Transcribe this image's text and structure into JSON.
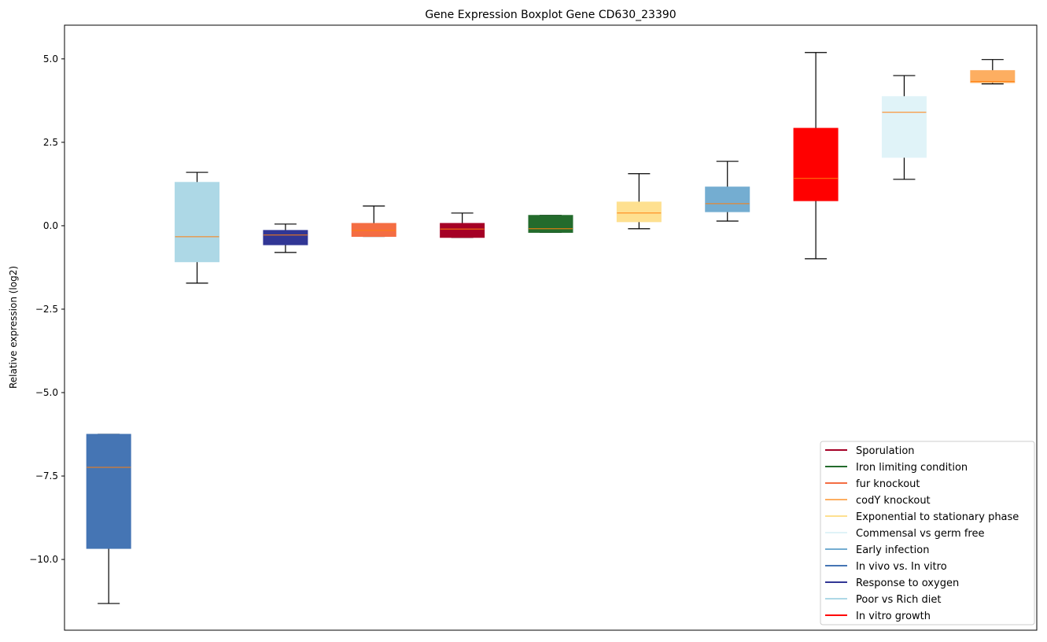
{
  "chart_data": {
    "type": "box",
    "title": "Gene Expression Boxplot Gene CD630_23390",
    "xlabel": "",
    "ylabel": "Relative expression (log2)",
    "ylim": [
      -12.12,
      6.01
    ],
    "yticks": [
      5.0,
      2.5,
      0.0,
      -2.5,
      -5.0,
      -7.5,
      -10.0
    ],
    "ytick_labels": [
      "5.0",
      "2.5",
      "0.0",
      "−2.5",
      "−5.0",
      "−7.5",
      "−10.0"
    ],
    "grid": false,
    "legend_placement": "lower-right",
    "median_color": "#ff7f0e",
    "boxes": [
      {
        "name": "In vivo vs. In vitro",
        "color": "#4575b4",
        "whislo": -11.32,
        "q1": -9.67,
        "med": -7.24,
        "q3": -6.25,
        "whishi": -6.25
      },
      {
        "name": "Poor vs Rich diet",
        "color": "#add8e6",
        "whislo": -1.72,
        "q1": -1.08,
        "med": -0.33,
        "q3": 1.3,
        "whishi": 1.6
      },
      {
        "name": "Response to oxygen",
        "color": "#313695",
        "whislo": -0.8,
        "q1": -0.57,
        "med": -0.28,
        "q3": -0.14,
        "whishi": 0.05
      },
      {
        "name": "fur knockout",
        "color": "#f46d43",
        "whislo": -0.32,
        "q1": -0.32,
        "med": -0.14,
        "q3": 0.07,
        "whishi": 0.59
      },
      {
        "name": "Sporulation",
        "color": "#a50026",
        "whislo": -0.35,
        "q1": -0.35,
        "med": -0.1,
        "q3": 0.07,
        "whishi": 0.38
      },
      {
        "name": "Iron limiting condition",
        "color": "#236b2c",
        "whislo": -0.2,
        "q1": -0.2,
        "med": -0.09,
        "q3": 0.31,
        "whishi": 0.31
      },
      {
        "name": "Exponential to stationary phase",
        "color": "#fee090",
        "whislo": -0.09,
        "q1": 0.12,
        "med": 0.38,
        "q3": 0.71,
        "whishi": 1.56
      },
      {
        "name": "Early infection",
        "color": "#74add1",
        "whislo": 0.14,
        "q1": 0.42,
        "med": 0.66,
        "q3": 1.16,
        "whishi": 1.93
      },
      {
        "name": "In vitro growth",
        "color": "#ff0000",
        "whislo": -0.99,
        "q1": 0.75,
        "med": 1.42,
        "q3": 2.92,
        "whishi": 5.19
      },
      {
        "name": "Commensal vs germ free",
        "color": "#e0f3f8",
        "whislo": 1.39,
        "q1": 2.05,
        "med": 3.4,
        "q3": 3.87,
        "whishi": 4.5
      },
      {
        "name": "codY knockout",
        "color": "#fdae61",
        "whislo": 4.25,
        "q1": 4.29,
        "med": 4.32,
        "q3": 4.65,
        "whishi": 4.98
      }
    ],
    "legend": [
      {
        "label": "Sporulation",
        "color": "#a50026"
      },
      {
        "label": "Iron limiting condition",
        "color": "#236b2c"
      },
      {
        "label": "fur knockout",
        "color": "#f46d43"
      },
      {
        "label": "codY knockout",
        "color": "#fdae61"
      },
      {
        "label": "Exponential to stationary phase",
        "color": "#fee090"
      },
      {
        "label": "Commensal vs germ free",
        "color": "#e0f3f8"
      },
      {
        "label": "Early infection",
        "color": "#74add1"
      },
      {
        "label": "In vivo vs. In vitro",
        "color": "#4575b4"
      },
      {
        "label": "Response to oxygen",
        "color": "#313695"
      },
      {
        "label": "Poor vs Rich diet",
        "color": "#add8e6"
      },
      {
        "label": "In vitro growth",
        "color": "#ff0000"
      }
    ]
  }
}
